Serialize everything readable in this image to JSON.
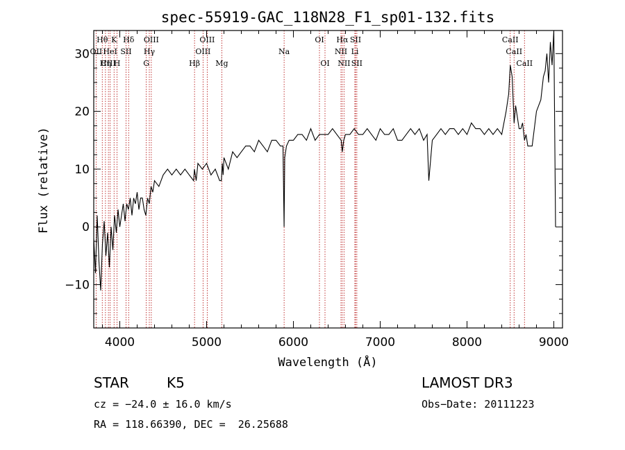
{
  "chart_data": {
    "type": "line",
    "title": "spec-55919-GAC_118N28_F1_sp01-132.fits",
    "xlabel": "Wavelength (Å)",
    "ylabel": "Flux (relative)",
    "xlim": [
      3700,
      9100
    ],
    "ylim": [
      -17.5,
      34
    ],
    "xticks": [
      4000,
      5000,
      6000,
      7000,
      8000,
      9000
    ],
    "yticks": [
      -10,
      0,
      10,
      20,
      30
    ],
    "xtick_labels": [
      "4000",
      "5000",
      "6000",
      "7000",
      "8000",
      "9000"
    ],
    "ytick_labels": [
      "−10",
      "0",
      "10",
      "20",
      "30"
    ],
    "grid": false,
    "series": [
      {
        "name": "flux",
        "x": [
          3700,
          3720,
          3740,
          3760,
          3780,
          3800,
          3820,
          3840,
          3860,
          3880,
          3900,
          3920,
          3940,
          3960,
          3980,
          4000,
          4020,
          4040,
          4060,
          4080,
          4100,
          4120,
          4140,
          4160,
          4180,
          4200,
          4220,
          4240,
          4260,
          4280,
          4300,
          4320,
          4340,
          4360,
          4380,
          4400,
          4450,
          4500,
          4550,
          4600,
          4650,
          4700,
          4750,
          4800,
          4850,
          4860,
          4880,
          4900,
          4950,
          5000,
          5050,
          5100,
          5150,
          5170,
          5180,
          5190,
          5200,
          5250,
          5300,
          5350,
          5400,
          5450,
          5500,
          5550,
          5600,
          5650,
          5700,
          5750,
          5800,
          5850,
          5880,
          5893,
          5900,
          5920,
          5950,
          6000,
          6050,
          6100,
          6150,
          6200,
          6250,
          6300,
          6350,
          6400,
          6450,
          6500,
          6550,
          6563,
          6580,
          6600,
          6650,
          6700,
          6750,
          6800,
          6850,
          6900,
          6950,
          7000,
          7050,
          7100,
          7150,
          7200,
          7250,
          7300,
          7350,
          7400,
          7450,
          7500,
          7540,
          7560,
          7600,
          7650,
          7700,
          7750,
          7800,
          7850,
          7900,
          7950,
          8000,
          8050,
          8100,
          8150,
          8200,
          8250,
          8300,
          8350,
          8400,
          8450,
          8480,
          8498,
          8520,
          8542,
          8560,
          8600,
          8620,
          8640,
          8662,
          8680,
          8700,
          8750,
          8800,
          8850,
          8880,
          8900,
          8920,
          8940,
          8960,
          8980,
          9000,
          9020
        ],
        "values": [
          -2,
          -8,
          2,
          -6,
          -11,
          -3,
          1,
          -5,
          -1,
          -7,
          0,
          -4,
          2,
          -1,
          3,
          0,
          2,
          4,
          1,
          4,
          3,
          5,
          2,
          5,
          4,
          6,
          3,
          5,
          5,
          3,
          2,
          5,
          4,
          7,
          6,
          8,
          7,
          9,
          10,
          9,
          10,
          9,
          10,
          9,
          8,
          10,
          8,
          11,
          10,
          11,
          9,
          10,
          8,
          8,
          11,
          9,
          12,
          10,
          13,
          12,
          13,
          14,
          14,
          13,
          15,
          14,
          13,
          15,
          15,
          14,
          14,
          0,
          12,
          14,
          15,
          15,
          16,
          16,
          15,
          17,
          15,
          16,
          16,
          16,
          17,
          16,
          15,
          13,
          15,
          16,
          16,
          17,
          16,
          16,
          17,
          16,
          15,
          17,
          16,
          16,
          17,
          15,
          15,
          16,
          17,
          16,
          17,
          15,
          16,
          8,
          15,
          16,
          17,
          16,
          17,
          17,
          16,
          17,
          16,
          18,
          17,
          17,
          16,
          17,
          16,
          17,
          16,
          20,
          23,
          28,
          26,
          18,
          21,
          17,
          17,
          18,
          15,
          16,
          14,
          14,
          20,
          22,
          26,
          27,
          30,
          25,
          32,
          28,
          34,
          0
        ],
        "color": "#000000"
      }
    ],
    "lines": [
      {
        "name": "H-theta",
        "wl": 3798,
        "label": "Hθ",
        "row": 0
      },
      {
        "name": "Ca-K",
        "wl": 3934,
        "label": "K",
        "row": 0
      },
      {
        "name": "H-delta",
        "wl": 4102,
        "label": "Hδ",
        "row": 0
      },
      {
        "name": "O-III-4363",
        "wl": 4363,
        "label": "OIII",
        "row": 0
      },
      {
        "name": "O-III-5007",
        "wl": 5007,
        "label": "OIII",
        "row": 0
      },
      {
        "name": "O-I-6300",
        "wl": 6300,
        "label": "OI",
        "row": 0
      },
      {
        "name": "H-alpha",
        "wl": 6563,
        "label": "Hα",
        "row": 0
      },
      {
        "name": "S-II-6716",
        "wl": 6716,
        "label": "SII",
        "row": 0
      },
      {
        "name": "Ca-II-8498",
        "wl": 8498,
        "label": "CaII",
        "row": 0
      },
      {
        "name": "O-II-3727",
        "wl": 3727,
        "label": "OII",
        "row": 1
      },
      {
        "name": "He-I-3889",
        "wl": 3889,
        "label": "HeI",
        "row": 1
      },
      {
        "name": "S-II-4072",
        "wl": 4072,
        "label": "SII",
        "row": 1
      },
      {
        "name": "H-gamma",
        "wl": 4340,
        "label": "Hγ",
        "row": 1
      },
      {
        "name": "O-III-4959",
        "wl": 4959,
        "label": "OIII",
        "row": 1
      },
      {
        "name": "Na-D",
        "wl": 5893,
        "label": "Na",
        "row": 1
      },
      {
        "name": "N-II-6548",
        "wl": 6548,
        "label": "NII",
        "row": 1
      },
      {
        "name": "Li-6708",
        "wl": 6708,
        "label": "Li",
        "row": 1
      },
      {
        "name": "Ca-II-8542",
        "wl": 8542,
        "label": "CaII",
        "row": 1
      },
      {
        "name": "Ne-III-3869",
        "wl": 3869,
        "label": "CIII",
        "row": 2
      },
      {
        "name": "H-eta",
        "wl": 3835,
        "label": "Hη",
        "row": 2
      },
      {
        "name": "Ca-H",
        "wl": 3968,
        "label": "H",
        "row": 2
      },
      {
        "name": "G-band",
        "wl": 4305,
        "label": "G",
        "row": 2
      },
      {
        "name": "H-beta",
        "wl": 4861,
        "label": "Hβ",
        "row": 2
      },
      {
        "name": "Mg-b",
        "wl": 5175,
        "label": "Mg",
        "row": 2
      },
      {
        "name": "O-I-6364",
        "wl": 6364,
        "label": "OI",
        "row": 2
      },
      {
        "name": "N-II-6583",
        "wl": 6583,
        "label": "NII",
        "row": 2
      },
      {
        "name": "S-II-6731",
        "wl": 6731,
        "label": "SII",
        "row": 2
      },
      {
        "name": "Ca-II-8662",
        "wl": 8662,
        "label": "CaII",
        "row": 2
      }
    ]
  },
  "footer": {
    "object_class": "STAR",
    "subclass": "K5",
    "survey": "LAMOST DR3",
    "cz": "cz = −24.0 ± 16.0 km/s",
    "obs_date": "Obs−Date: 20111223",
    "radec": "RA = 118.66390, DEC =  26.25688"
  }
}
